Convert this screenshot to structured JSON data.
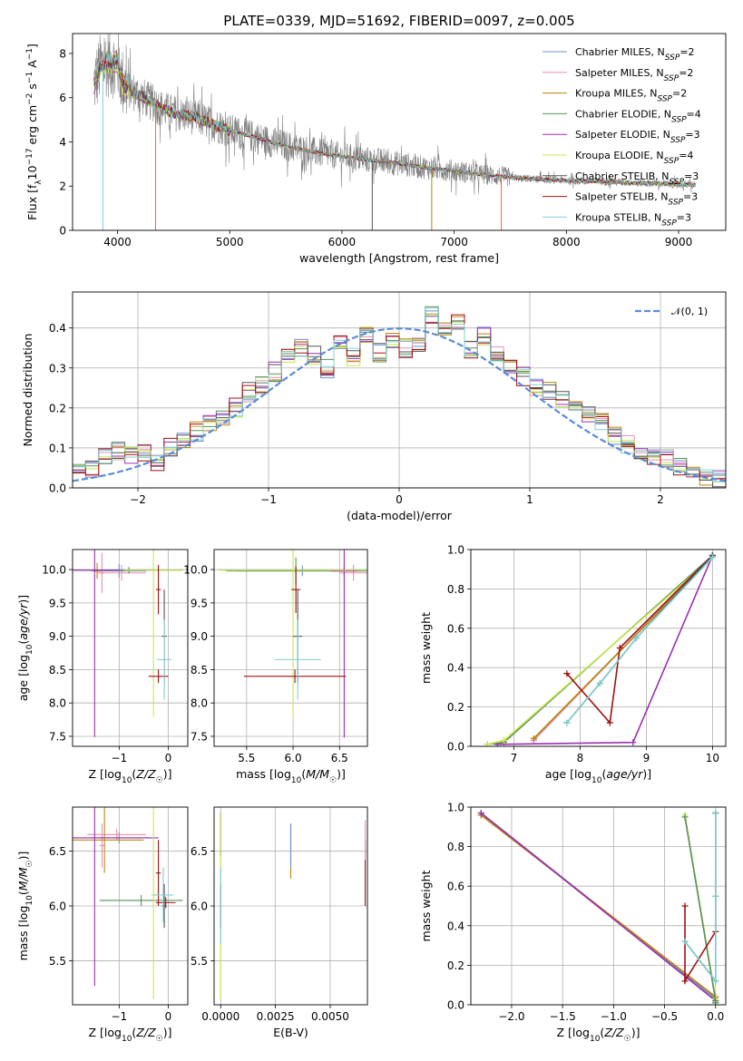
{
  "colors": {
    "Chabrier MILES": "#6f8fcf",
    "Salpeter MILES": "#e88fb4",
    "Kroupa MILES": "#b8860b",
    "Chabrier ELODIE": "#5a8f5a",
    "Salpeter ELODIE": "#9b30b0",
    "Kroupa ELODIE": "#c8e84a",
    "Chabrier STELIB": "#555555",
    "Salpeter STELIB": "#a01010",
    "Kroupa STELIB": "#7fcfd6"
  },
  "chart_data": [
    {
      "id": "spectrum",
      "type": "line",
      "title": "PLATE=0339, MJD=51692, FIBERID=0097, z=0.005",
      "xlabel": "wavelength [Angstrom, rest frame]",
      "ylabel": "Flux [f_λ 10^-17 erg cm^-2 s^-1 A^-1]",
      "xlim": [
        3600,
        9420
      ],
      "ylim": [
        0,
        8.9
      ],
      "xticks": [
        4000,
        5000,
        6000,
        7000,
        8000,
        9000
      ],
      "yticks": [
        0,
        2,
        4,
        6,
        8
      ],
      "legend_position": "top-right",
      "legend": [
        {
          "name": "Chabrier MILES",
          "nssp": "2"
        },
        {
          "name": "Salpeter MILES",
          "nssp": "2"
        },
        {
          "name": "Kroupa MILES",
          "nssp": "2"
        },
        {
          "name": "Chabrier ELODIE",
          "nssp": "4"
        },
        {
          "name": "Salpeter ELODIE",
          "nssp": "3"
        },
        {
          "name": "Kroupa ELODIE",
          "nssp": "4"
        },
        {
          "name": "Chabrier STELIB",
          "nssp": "3"
        },
        {
          "name": "Salpeter STELIB",
          "nssp": "3"
        },
        {
          "name": "Kroupa STELIB",
          "nssp": "3"
        }
      ],
      "continuum": {
        "wavelength": [
          3790,
          3850,
          3900,
          3950,
          4000,
          4050,
          4100,
          4200,
          4300,
          4400,
          4500,
          4600,
          4700,
          4800,
          4900,
          5000,
          5200,
          5400,
          5600,
          5800,
          6000,
          6200,
          6400,
          6600,
          6800,
          7000,
          7200,
          7400,
          7600,
          7800,
          8000,
          8200,
          8400,
          8600,
          8800,
          9000,
          9150
        ],
        "flux": [
          6.6,
          7.4,
          7.6,
          7.5,
          7.6,
          6.6,
          6.4,
          6.1,
          5.8,
          5.5,
          5.3,
          5.2,
          5.1,
          4.9,
          4.7,
          4.5,
          4.25,
          3.95,
          3.7,
          3.5,
          3.35,
          3.2,
          3.1,
          2.95,
          2.8,
          2.7,
          2.55,
          2.45,
          2.35,
          2.3,
          2.25,
          2.22,
          2.2,
          2.15,
          2.12,
          2.08,
          2.05
        ]
      }
    },
    {
      "id": "residuals",
      "type": "histogram",
      "xlabel": "(data-model)/error",
      "ylabel": "Normed distribution",
      "xlim": [
        -2.5,
        2.5
      ],
      "ylim": [
        0,
        0.49
      ],
      "xticks": [
        -2,
        -1,
        0,
        1,
        2
      ],
      "yticks": [
        0.0,
        0.1,
        0.2,
        0.3,
        0.4
      ],
      "legend_position": "top-right",
      "reference_label": "𝒩(0, 1)",
      "bin_width": 0.1,
      "bin_start": -2.5,
      "density": [
        0.04,
        0.05,
        0.08,
        0.09,
        0.08,
        0.09,
        0.06,
        0.1,
        0.12,
        0.14,
        0.16,
        0.17,
        0.2,
        0.24,
        0.26,
        0.29,
        0.33,
        0.35,
        0.33,
        0.3,
        0.37,
        0.33,
        0.38,
        0.34,
        0.37,
        0.35,
        0.36,
        0.43,
        0.39,
        0.42,
        0.35,
        0.38,
        0.33,
        0.3,
        0.28,
        0.25,
        0.24,
        0.22,
        0.2,
        0.19,
        0.17,
        0.13,
        0.11,
        0.09,
        0.08,
        0.07,
        0.05,
        0.05,
        0.03,
        0.02
      ]
    },
    {
      "id": "age-vs-Z",
      "type": "errorbar",
      "xlabel": "Z [log10(Z/Z☉)]",
      "ylabel": "age [log10(age/yr)]",
      "xlim": [
        -1.95,
        0.4
      ],
      "ylim": [
        7.35,
        10.3
      ],
      "xticks": [
        -1,
        0
      ],
      "yticks": [
        7.5,
        8.0,
        8.5,
        9.0,
        9.5,
        10.0
      ],
      "points": [
        {
          "series": "Chabrier MILES",
          "x": -1.0,
          "y": 9.98,
          "xerr": 0.55,
          "yerr": 0.1
        },
        {
          "series": "Salpeter MILES",
          "x": -0.95,
          "y": 9.95,
          "xerr": 0.5,
          "yerr": 0.12
        },
        {
          "series": "Salpeter MILES",
          "x": -1.35,
          "y": 9.95,
          "xerr": 0.05,
          "yerr": 0.3
        },
        {
          "series": "Kroupa MILES",
          "x": -1.45,
          "y": 9.98,
          "xerr": 0.08,
          "yerr": 0.12
        },
        {
          "series": "Chabrier ELODIE",
          "x": -0.8,
          "y": 9.99,
          "xerr": 1.1,
          "yerr": 0.05
        },
        {
          "series": "Salpeter ELODIE",
          "x": -1.5,
          "y": 9.99,
          "xerr": 0.5,
          "yerr": 2.5
        },
        {
          "series": "Kroupa ELODIE",
          "x": -0.3,
          "y": 9.99,
          "xerr": 0.6,
          "yerr": 2.2
        },
        {
          "series": "Salpeter STELIB",
          "x": -0.2,
          "y": 8.4,
          "xerr": 0.2,
          "yerr": 0.1
        },
        {
          "series": "Salpeter STELIB",
          "x": -0.2,
          "y": 9.7,
          "xerr": 0.05,
          "yerr": 0.37
        },
        {
          "series": "Chabrier STELIB",
          "x": -0.08,
          "y": 9.0,
          "xerr": 0.05,
          "yerr": 0.7
        },
        {
          "series": "Kroupa STELIB",
          "x": -0.08,
          "y": 8.65,
          "xerr": 0.15,
          "yerr": 0.6
        }
      ]
    },
    {
      "id": "age-vs-mass",
      "type": "errorbar",
      "xlabel": "mass [log10(M/M☉)]",
      "xlim": [
        5.15,
        6.8
      ],
      "ylim": [
        7.35,
        10.3
      ],
      "xticks": [
        5.5,
        6.0,
        6.5
      ],
      "yticks": [
        7.5,
        8.0,
        8.5,
        9.0,
        9.5,
        10.0
      ],
      "points": [
        {
          "series": "Chabrier MILES",
          "x": 6.1,
          "y": 9.98,
          "xerr": 0.7,
          "yerr": 0.08
        },
        {
          "series": "Salpeter MILES",
          "x": 6.65,
          "y": 9.95,
          "xerr": 0.15,
          "yerr": 0.12
        },
        {
          "series": "Kroupa MILES",
          "x": 6.55,
          "y": 9.98,
          "xerr": 0.12,
          "yerr": 0.1
        },
        {
          "series": "Chabrier ELODIE",
          "x": 6.03,
          "y": 9.98,
          "xerr": 0.75,
          "yerr": 0.2
        },
        {
          "series": "Salpeter ELODIE",
          "x": 6.55,
          "y": 9.98,
          "xerr": 0.15,
          "yerr": 2.5
        },
        {
          "series": "Kroupa ELODIE",
          "x": 6.0,
          "y": 9.99,
          "xerr": 0.8,
          "yerr": 2.2
        },
        {
          "series": "Salpeter STELIB",
          "x": 6.02,
          "y": 8.4,
          "xerr": 0.55,
          "yerr": 0.1
        },
        {
          "series": "Salpeter STELIB",
          "x": 6.03,
          "y": 9.7,
          "xerr": 0.05,
          "yerr": 0.35
        },
        {
          "series": "Chabrier STELIB",
          "x": 6.05,
          "y": 9.0,
          "xerr": 0.05,
          "yerr": 0.7
        },
        {
          "series": "Kroupa STELIB",
          "x": 6.05,
          "y": 8.65,
          "xerr": 0.25,
          "yerr": 0.6
        }
      ]
    },
    {
      "id": "weight-vs-age",
      "type": "line",
      "xlabel": "age [log10(age/yr)]",
      "ylabel": "mass weight",
      "xlim": [
        6.35,
        10.2
      ],
      "ylim": [
        0,
        1.0
      ],
      "xticks": [
        7,
        8,
        9,
        10
      ],
      "yticks": [
        0.0,
        0.2,
        0.4,
        0.6,
        0.8,
        1.0
      ],
      "series": [
        {
          "name": "Chabrier MILES",
          "x": [
            7.3,
            10.0
          ],
          "y": [
            0.03,
            0.97
          ]
        },
        {
          "name": "Salpeter MILES",
          "x": [
            7.3,
            10.0
          ],
          "y": [
            0.03,
            0.97
          ]
        },
        {
          "name": "Kroupa MILES",
          "x": [
            7.3,
            10.0
          ],
          "y": [
            0.04,
            0.96
          ]
        },
        {
          "name": "Chabrier ELODIE",
          "x": [
            6.6,
            6.85,
            10.0
          ],
          "y": [
            0.01,
            0.02,
            0.97
          ]
        },
        {
          "name": "Salpeter ELODIE",
          "x": [
            6.75,
            8.8,
            10.0
          ],
          "y": [
            0.01,
            0.02,
            0.97
          ]
        },
        {
          "name": "Kroupa ELODIE",
          "x": [
            6.6,
            6.85,
            10.0
          ],
          "y": [
            0.01,
            0.03,
            0.96
          ]
        },
        {
          "name": "Salpeter STELIB",
          "x": [
            7.8,
            8.45,
            8.6,
            10.0
          ],
          "y": [
            0.37,
            0.12,
            0.5,
            0.97
          ]
        },
        {
          "name": "Chabrier STELIB",
          "x": [
            7.8,
            8.3,
            8.85,
            10.0
          ],
          "y": [
            0.12,
            0.32,
            0.55,
            0.97
          ]
        },
        {
          "name": "Kroupa STELIB",
          "x": [
            7.8,
            8.3,
            8.85,
            10.0
          ],
          "y": [
            0.12,
            0.32,
            0.55,
            0.96
          ]
        }
      ]
    },
    {
      "id": "mass-vs-Z",
      "type": "errorbar",
      "xlabel": "Z [log10(Z/Z☉)]",
      "ylabel": "mass [log10(M/M☉)]",
      "xlim": [
        -1.95,
        0.4
      ],
      "ylim": [
        5.1,
        6.9
      ],
      "xticks": [
        -1,
        0
      ],
      "yticks": [
        5.5,
        6.0,
        6.5
      ],
      "points": [
        {
          "series": "Chabrier MILES",
          "x": -1.0,
          "y": 6.62,
          "xerr": 0.6,
          "yerr": 0.05
        },
        {
          "series": "Salpeter MILES",
          "x": -1.05,
          "y": 6.65,
          "xerr": 0.6,
          "yerr": 0.05
        },
        {
          "series": "Salpeter MILES",
          "x": -1.35,
          "y": 6.55,
          "xerr": 0.05,
          "yerr": 0.2
        },
        {
          "series": "Kroupa MILES",
          "x": -1.3,
          "y": 6.6,
          "xerr": 0.8,
          "yerr": 0.3
        },
        {
          "series": "Chabrier ELODIE",
          "x": -0.55,
          "y": 6.05,
          "xerr": 0.85,
          "yerr": 0.05
        },
        {
          "series": "Salpeter ELODIE",
          "x": -1.5,
          "y": 6.62,
          "xerr": 1.3,
          "yerr": 1.35
        },
        {
          "series": "Kroupa ELODIE",
          "x": -0.3,
          "y": 6.1,
          "xerr": 0.05,
          "yerr": 0.95
        },
        {
          "series": "Salpeter STELIB",
          "x": -0.05,
          "y": 6.03,
          "xerr": 0.2,
          "yerr": 0.05
        },
        {
          "series": "Salpeter STELIB",
          "x": -0.2,
          "y": 6.3,
          "xerr": 0.05,
          "yerr": 0.3
        },
        {
          "series": "Chabrier STELIB",
          "x": -0.08,
          "y": 6.0,
          "xerr": 0.05,
          "yerr": 0.2
        },
        {
          "series": "Kroupa STELIB",
          "x": -0.1,
          "y": 6.1,
          "xerr": 0.2,
          "yerr": 0.25
        }
      ]
    },
    {
      "id": "mass-vs-ebv",
      "type": "errorbar",
      "xlabel": "E(B-V)",
      "xlim": [
        -0.0003,
        0.0067
      ],
      "ylim": [
        5.1,
        6.9
      ],
      "xticks": [
        0.0,
        0.0025,
        0.005
      ],
      "xticklabels": [
        "0.0000",
        "0.0025",
        "0.0050"
      ],
      "yticks": [
        5.5,
        6.0,
        6.5
      ],
      "points": [
        {
          "series": "Salpeter ELODIE",
          "x": 0.0,
          "y": 6.65,
          "xerr": 0,
          "yerr": 0.2
        },
        {
          "series": "Kroupa ELODIE",
          "x": 0.0,
          "y": 6.0,
          "xerr": 0,
          "yerr": 0.85
        },
        {
          "series": "Chabrier STELIB",
          "x": 0.0,
          "y": 6.0,
          "xerr": 0,
          "yerr": 0.2
        },
        {
          "series": "Kroupa STELIB",
          "x": 0.0,
          "y": 6.0,
          "xerr": 0,
          "yerr": 0.35
        },
        {
          "series": "Kroupa MILES",
          "x": 0.0032,
          "y": 6.5,
          "xerr": 0,
          "yerr": 0.25
        },
        {
          "series": "Chabrier MILES",
          "x": 0.0032,
          "y": 6.55,
          "xerr": 0,
          "yerr": 0.2
        },
        {
          "series": "Salpeter STELIB",
          "x": 0.0066,
          "y": 6.3,
          "xerr": 0,
          "yerr": 0.3
        },
        {
          "series": "Salpeter MILES",
          "x": 0.0066,
          "y": 6.6,
          "xerr": 0,
          "yerr": 0.18
        }
      ]
    },
    {
      "id": "weight-vs-Z",
      "type": "line",
      "xlabel": "Z [log10(Z/Z☉)]",
      "ylabel": "mass weight",
      "xlim": [
        -2.4,
        0.1
      ],
      "ylim": [
        0,
        1.0
      ],
      "xticks": [
        -2.0,
        -1.5,
        -1.0,
        -0.5,
        0.0
      ],
      "yticks": [
        0.0,
        0.2,
        0.4,
        0.6,
        0.8,
        1.0
      ],
      "series": [
        {
          "name": "Chabrier MILES",
          "x": [
            -2.3,
            0.0
          ],
          "y": [
            0.97,
            0.03
          ]
        },
        {
          "name": "Salpeter MILES",
          "x": [
            -2.3,
            0.0
          ],
          "y": [
            0.96,
            0.04
          ]
        },
        {
          "name": "Kroupa MILES",
          "x": [
            -2.3,
            0.0
          ],
          "y": [
            0.96,
            0.04
          ]
        },
        {
          "name": "Salpeter ELODIE",
          "x": [
            -2.3,
            0.0,
            0.0
          ],
          "y": [
            0.97,
            0.02,
            0.01
          ]
        },
        {
          "name": "Kroupa ELODIE",
          "x": [
            -0.3,
            0.0,
            0.0
          ],
          "y": [
            0.96,
            0.03,
            0.01
          ]
        },
        {
          "name": "Chabrier ELODIE",
          "x": [
            -0.3,
            0.0,
            0.0
          ],
          "y": [
            0.95,
            0.02,
            0.01
          ]
        },
        {
          "name": "Salpeter STELIB",
          "x": [
            -0.3,
            -0.3,
            0.0,
            0.0
          ],
          "y": [
            0.5,
            0.12,
            0.37,
            0.97
          ]
        },
        {
          "name": "Chabrier STELIB",
          "x": [
            -0.3,
            0.0,
            0.0,
            0.0
          ],
          "y": [
            0.32,
            0.12,
            0.55,
            0.97
          ]
        },
        {
          "name": "Kroupa STELIB",
          "x": [
            -0.3,
            0.0,
            0.0,
            0.0
          ],
          "y": [
            0.32,
            0.12,
            0.55,
            0.97
          ]
        }
      ]
    }
  ]
}
